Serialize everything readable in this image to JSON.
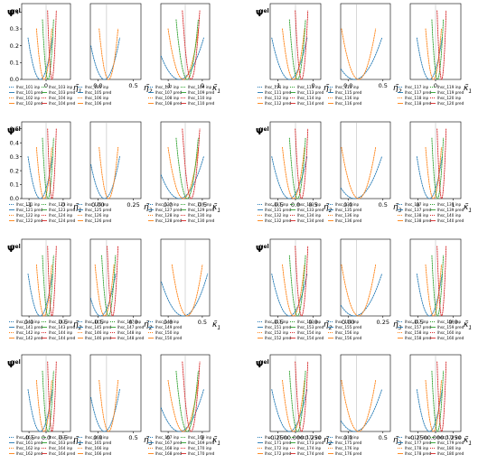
{
  "figure": {
    "ylabel_psi": "Ψ̃",
    "ylabel_sup": "el",
    "background": "#ffffff",
    "axis_color": "#000000",
    "grid_color": "#b0b0b0",
    "colors": [
      "#1f77b4",
      "#ff7f0e",
      "#2ca02c",
      "#d62728",
      "#9467bd",
      "#8c564b",
      "#e377c2",
      "#7f7f7f",
      "#bcbd22",
      "#17becf"
    ]
  },
  "chart_data": [
    {
      "type": "line",
      "panel": 1,
      "title": "",
      "xlabel_sym": "η̃",
      "xlabel_sub": "1",
      "x_ticks": [
        "0"
      ],
      "y_ticks": [
        "0.0",
        "0.1",
        "0.2",
        "0.3",
        "0.4"
      ],
      "ylim": [
        0,
        0.45
      ],
      "series": [
        {
          "name": "lhsc_101 inp"
        },
        {
          "name": "lhsc_101 pred"
        },
        {
          "name": "lhsc_102 inp"
        },
        {
          "name": "lhsc_102 pred"
        },
        {
          "name": "lhsc_103 inp"
        },
        {
          "name": "lhsc_103 pred"
        },
        {
          "name": "lhsc_104 inp"
        },
        {
          "name": "lhsc_104 pred"
        }
      ]
    },
    {
      "type": "line",
      "panel": 2,
      "title": "",
      "xlabel_sym": "η̃",
      "xlabel_sub": "2",
      "x_ticks": [
        "0.0",
        "0.5"
      ],
      "y_ticks": [],
      "ylim": [
        0,
        0.45
      ],
      "series": [
        {
          "name": "lhsc_105 inp"
        },
        {
          "name": "lhsc_105 pred"
        },
        {
          "name": "lhsc_106 inp"
        },
        {
          "name": "lhsc_106 pred"
        }
      ]
    },
    {
      "type": "line",
      "panel": 3,
      "title": "",
      "xlabel_sym": "κ̃",
      "xlabel_sub": "1",
      "x_ticks": [
        "-1",
        "0"
      ],
      "y_ticks": [],
      "ylim": [
        0,
        0.45
      ],
      "series": [
        {
          "name": "lhsc_107 inp"
        },
        {
          "name": "lhsc_107 pred"
        },
        {
          "name": "lhsc_108 inp"
        },
        {
          "name": "lhsc_108 pred"
        },
        {
          "name": "lhsc_109 inp"
        },
        {
          "name": "lhsc_109 pred"
        },
        {
          "name": "lhsc_110 inp"
        },
        {
          "name": "lhsc_110 pred"
        }
      ]
    },
    {
      "type": "line",
      "panel": 4,
      "title": "",
      "xlabel_sym": "η̃",
      "xlabel_sub": "1",
      "x_ticks": [
        "-1",
        "0"
      ],
      "y_ticks": [],
      "ylim": [
        0,
        0.45
      ],
      "series": [
        {
          "name": "lhsc_111 inp"
        },
        {
          "name": "lhsc_111 pred"
        },
        {
          "name": "lhsc_112 inp"
        },
        {
          "name": "lhsc_112 pred"
        },
        {
          "name": "lhsc_113 inp"
        },
        {
          "name": "lhsc_113 pred"
        },
        {
          "name": "lhsc_114 inp"
        },
        {
          "name": "lhsc_114 pred"
        }
      ]
    },
    {
      "type": "line",
      "panel": 5,
      "title": "",
      "xlabel_sym": "η̃",
      "xlabel_sub": "2",
      "x_ticks": [
        "0.0",
        "0.5"
      ],
      "y_ticks": [],
      "ylim": [
        0,
        0.45
      ],
      "series": [
        {
          "name": "lhsc_115 inp"
        },
        {
          "name": "lhsc_115 pred"
        },
        {
          "name": "lhsc_116 inp"
        },
        {
          "name": "lhsc_116 pred"
        }
      ]
    },
    {
      "type": "line",
      "panel": 6,
      "title": "",
      "xlabel_sym": "κ̃",
      "xlabel_sub": "1",
      "x_ticks": [
        "0"
      ],
      "y_ticks": [],
      "ylim": [
        0,
        0.45
      ],
      "series": [
        {
          "name": "lhsc_117 inp"
        },
        {
          "name": "lhsc_117 pred"
        },
        {
          "name": "lhsc_118 inp"
        },
        {
          "name": "lhsc_118 pred"
        },
        {
          "name": "lhsc_119 inp"
        },
        {
          "name": "lhsc_119 pred"
        },
        {
          "name": "lhsc_120 inp"
        },
        {
          "name": "lhsc_120 pred"
        }
      ]
    },
    {
      "type": "line",
      "panel": 7,
      "title": "",
      "xlabel_sym": "η̃",
      "xlabel_sub": "1",
      "x_ticks": [
        "-1",
        "0"
      ],
      "y_ticks": [
        "0.0",
        "0.1",
        "0.2",
        "0.3",
        "0.4",
        "0.5"
      ],
      "ylim": [
        0,
        0.55
      ],
      "series": [
        {
          "name": "lhsc_121 inp"
        },
        {
          "name": "lhsc_121 pred"
        },
        {
          "name": "lhsc_122 inp"
        },
        {
          "name": "lhsc_122 pred"
        },
        {
          "name": "lhsc_123 inp"
        },
        {
          "name": "lhsc_123 pred"
        },
        {
          "name": "lhsc_124 inp"
        },
        {
          "name": "lhsc_124 pred"
        }
      ]
    },
    {
      "type": "line",
      "panel": 8,
      "title": "",
      "xlabel_sym": "η̃",
      "xlabel_sub": "3",
      "x_ticks": [
        "0.00",
        "0.25"
      ],
      "y_ticks": [],
      "ylim": [
        0,
        0.55
      ],
      "series": [
        {
          "name": "lhsc_125 inp"
        },
        {
          "name": "lhsc_125 pred"
        },
        {
          "name": "lhsc_126 inp"
        },
        {
          "name": "lhsc_126 pred"
        }
      ]
    },
    {
      "type": "line",
      "panel": 9,
      "title": "",
      "xlabel_sym": "κ̃",
      "xlabel_sub": "1",
      "x_ticks": [
        "0.0",
        "0.5"
      ],
      "y_ticks": [],
      "ylim": [
        0,
        0.55
      ],
      "series": [
        {
          "name": "lhsc_127 inp"
        },
        {
          "name": "lhsc_127 pred"
        },
        {
          "name": "lhsc_128 inp"
        },
        {
          "name": "lhsc_128 pred"
        },
        {
          "name": "lhsc_129 inp"
        },
        {
          "name": "lhsc_129 pred"
        },
        {
          "name": "lhsc_130 inp"
        },
        {
          "name": "lhsc_130 pred"
        }
      ]
    },
    {
      "type": "line",
      "panel": 10,
      "title": "",
      "xlabel_sym": "η̃",
      "xlabel_sub": "2",
      "x_ticks": [
        "-0.5",
        "0.0",
        "0.5"
      ],
      "y_ticks": [],
      "ylim": [
        0,
        0.55
      ],
      "series": [
        {
          "name": "lhsc_131 inp"
        },
        {
          "name": "lhsc_131 pred"
        },
        {
          "name": "lhsc_132 inp"
        },
        {
          "name": "lhsc_132 pred"
        },
        {
          "name": "lhsc_133 inp"
        },
        {
          "name": "lhsc_133 pred"
        },
        {
          "name": "lhsc_134 inp"
        },
        {
          "name": "lhsc_134 pred"
        }
      ]
    },
    {
      "type": "line",
      "panel": 11,
      "title": "",
      "xlabel_sym": "η̃",
      "xlabel_sub": "3",
      "x_ticks": [
        "0.0",
        "0.5"
      ],
      "y_ticks": [],
      "ylim": [
        0,
        0.55
      ],
      "series": [
        {
          "name": "lhsc_135 inp"
        },
        {
          "name": "lhsc_135 pred"
        },
        {
          "name": "lhsc_136 inp"
        },
        {
          "name": "lhsc_136 pred"
        }
      ]
    },
    {
      "type": "line",
      "panel": 12,
      "title": "",
      "xlabel_sym": "κ̃",
      "xlabel_sub": "1",
      "x_ticks": [
        "0",
        "1"
      ],
      "y_ticks": [],
      "ylim": [
        0,
        0.55
      ],
      "series": [
        {
          "name": "lhsc_137 inp"
        },
        {
          "name": "lhsc_137 pred"
        },
        {
          "name": "lhsc_138 inp"
        },
        {
          "name": "lhsc_138 pred"
        },
        {
          "name": "lhsc_139 inp"
        },
        {
          "name": "lhsc_139 pred"
        },
        {
          "name": "lhsc_140 inp"
        },
        {
          "name": "lhsc_140 pred"
        }
      ]
    },
    {
      "type": "line",
      "panel": 13,
      "title": "",
      "xlabel_sym": "η̃",
      "xlabel_sub": "2",
      "x_ticks": [
        "0.0",
        "0.5"
      ],
      "y_ticks": [],
      "ylim": [
        0,
        0.5
      ],
      "series": [
        {
          "name": "lhsc_141 inp"
        },
        {
          "name": "lhsc_141 pred"
        },
        {
          "name": "lhsc_142 inp"
        },
        {
          "name": "lhsc_142 pred"
        },
        {
          "name": "lhsc_143 inp"
        },
        {
          "name": "lhsc_143 pred"
        },
        {
          "name": "lhsc_144 inp"
        },
        {
          "name": "lhsc_144 pred"
        }
      ]
    },
    {
      "type": "line",
      "panel": 14,
      "title": "",
      "xlabel_sym": "η̃",
      "xlabel_sub": "2",
      "x_ticks": [
        "-0.5",
        "0.0"
      ],
      "y_ticks": [],
      "ylim": [
        0,
        0.5
      ],
      "series": [
        {
          "name": "lhsc_145 inp"
        },
        {
          "name": "lhsc_145 pred"
        },
        {
          "name": "lhsc_146 inp"
        },
        {
          "name": "lhsc_146 pred"
        },
        {
          "name": "lhsc_147 inp"
        },
        {
          "name": "lhsc_147 pred"
        },
        {
          "name": "lhsc_148 inp"
        },
        {
          "name": "lhsc_148 pred"
        }
      ]
    },
    {
      "type": "line",
      "panel": 15,
      "title": "",
      "xlabel_sym": "κ̃",
      "xlabel_sub": "1",
      "x_ticks": [
        "0.0",
        "0.5"
      ],
      "y_ticks": [],
      "ylim": [
        0,
        0.5
      ],
      "series": [
        {
          "name": "lhsc_149 inp"
        },
        {
          "name": "lhsc_149 pred"
        },
        {
          "name": "lhsc_150 inp"
        },
        {
          "name": "lhsc_150 pred"
        }
      ]
    },
    {
      "type": "line",
      "panel": 16,
      "title": "",
      "xlabel_sym": "η̃",
      "xlabel_sub": "2",
      "x_ticks": [
        "-0.5",
        "0.0"
      ],
      "y_ticks": [],
      "ylim": [
        0,
        0.5
      ],
      "series": [
        {
          "name": "lhsc_151 inp"
        },
        {
          "name": "lhsc_151 pred"
        },
        {
          "name": "lhsc_152 inp"
        },
        {
          "name": "lhsc_152 pred"
        },
        {
          "name": "lhsc_153 inp"
        },
        {
          "name": "lhsc_153 pred"
        },
        {
          "name": "lhsc_154 inp"
        },
        {
          "name": "lhsc_154 pred"
        }
      ]
    },
    {
      "type": "line",
      "panel": 17,
      "title": "",
      "xlabel_sym": "η̃",
      "xlabel_sub": "3",
      "x_ticks": [
        "0.00",
        "0.25"
      ],
      "y_ticks": [],
      "ylim": [
        0,
        0.5
      ],
      "series": [
        {
          "name": "lhsc_155 inp"
        },
        {
          "name": "lhsc_155 pred"
        },
        {
          "name": "lhsc_156 inp"
        },
        {
          "name": "lhsc_156 pred"
        }
      ]
    },
    {
      "type": "line",
      "panel": 18,
      "title": "",
      "xlabel_sym": "κ̃",
      "xlabel_sub": "1",
      "x_ticks": [
        "-0.5",
        "0.0"
      ],
      "y_ticks": [],
      "ylim": [
        0,
        0.5
      ],
      "series": [
        {
          "name": "lhsc_157 inp"
        },
        {
          "name": "lhsc_157 pred"
        },
        {
          "name": "lhsc_158 inp"
        },
        {
          "name": "lhsc_158 pred"
        },
        {
          "name": "lhsc_159 inp"
        },
        {
          "name": "lhsc_159 pred"
        },
        {
          "name": "lhsc_160 inp"
        },
        {
          "name": "lhsc_160 pred"
        }
      ]
    },
    {
      "type": "line",
      "panel": 19,
      "title": "",
      "xlabel_sym": "η̃",
      "xlabel_sub": "1",
      "x_ticks": [
        "-0.5",
        "0.0",
        "0.5"
      ],
      "y_ticks": [],
      "ylim": [
        0,
        0.5
      ],
      "series": [
        {
          "name": "lhsc_161 inp"
        },
        {
          "name": "lhsc_161 pred"
        },
        {
          "name": "lhsc_162 inp"
        },
        {
          "name": "lhsc_162 pred"
        },
        {
          "name": "lhsc_163 inp"
        },
        {
          "name": "lhsc_163 pred"
        },
        {
          "name": "lhsc_164 inp"
        },
        {
          "name": "lhsc_164 pred"
        }
      ]
    },
    {
      "type": "line",
      "panel": 20,
      "title": "",
      "xlabel_sym": "η̃",
      "xlabel_sub": "3",
      "x_ticks": [
        "0.0",
        "0.5"
      ],
      "y_ticks": [],
      "ylim": [
        0,
        0.5
      ],
      "series": [
        {
          "name": "lhsc_165 inp"
        },
        {
          "name": "lhsc_165 pred"
        },
        {
          "name": "lhsc_166 inp"
        },
        {
          "name": "lhsc_166 pred"
        }
      ]
    },
    {
      "type": "line",
      "panel": 21,
      "title": "",
      "xlabel_sym": "κ̃",
      "xlabel_sub": "1",
      "x_ticks": [
        "0",
        "1"
      ],
      "y_ticks": [],
      "ylim": [
        0,
        0.5
      ],
      "series": [
        {
          "name": "lhsc_167 inp"
        },
        {
          "name": "lhsc_167 pred"
        },
        {
          "name": "lhsc_168 inp"
        },
        {
          "name": "lhsc_168 pred"
        },
        {
          "name": "lhsc_169 inp"
        },
        {
          "name": "lhsc_169 pred"
        },
        {
          "name": "lhsc_170 inp"
        },
        {
          "name": "lhsc_170 pred"
        }
      ]
    },
    {
      "type": "line",
      "panel": 22,
      "title": "",
      "xlabel_sym": "η̃",
      "xlabel_sub": "2",
      "x_ticks": [
        "-0.250",
        "0.000",
        "0.250"
      ],
      "y_ticks": [],
      "ylim": [
        0,
        0.5
      ],
      "series": [
        {
          "name": "lhsc_171 inp"
        },
        {
          "name": "lhsc_171 pred"
        },
        {
          "name": "lhsc_172 inp"
        },
        {
          "name": "lhsc_172 pred"
        },
        {
          "name": "lhsc_173 inp"
        },
        {
          "name": "lhsc_173 pred"
        },
        {
          "name": "lhsc_174 inp"
        },
        {
          "name": "lhsc_174 pred"
        }
      ]
    },
    {
      "type": "line",
      "panel": 23,
      "title": "",
      "xlabel_sym": "η̃",
      "xlabel_sub": "3",
      "x_ticks": [
        "0.0",
        "0.5"
      ],
      "y_ticks": [],
      "ylim": [
        0,
        0.5
      ],
      "series": [
        {
          "name": "lhsc_175 inp"
        },
        {
          "name": "lhsc_175 pred"
        },
        {
          "name": "lhsc_176 inp"
        },
        {
          "name": "lhsc_176 pred"
        }
      ]
    },
    {
      "type": "line",
      "panel": 24,
      "title": "",
      "xlabel_sym": "κ̃",
      "xlabel_sub": "1",
      "x_ticks": [
        "-0.250",
        "0.000",
        "0.250"
      ],
      "y_ticks": [],
      "ylim": [
        0,
        0.5
      ],
      "series": [
        {
          "name": "lhsc_177 inp"
        },
        {
          "name": "lhsc_177 pred"
        },
        {
          "name": "lhsc_178 inp"
        },
        {
          "name": "lhsc_178 pred"
        },
        {
          "name": "lhsc_179 inp"
        },
        {
          "name": "lhsc_179 pred"
        },
        {
          "name": "lhsc_180 inp"
        },
        {
          "name": "lhsc_180 pred"
        }
      ]
    }
  ]
}
